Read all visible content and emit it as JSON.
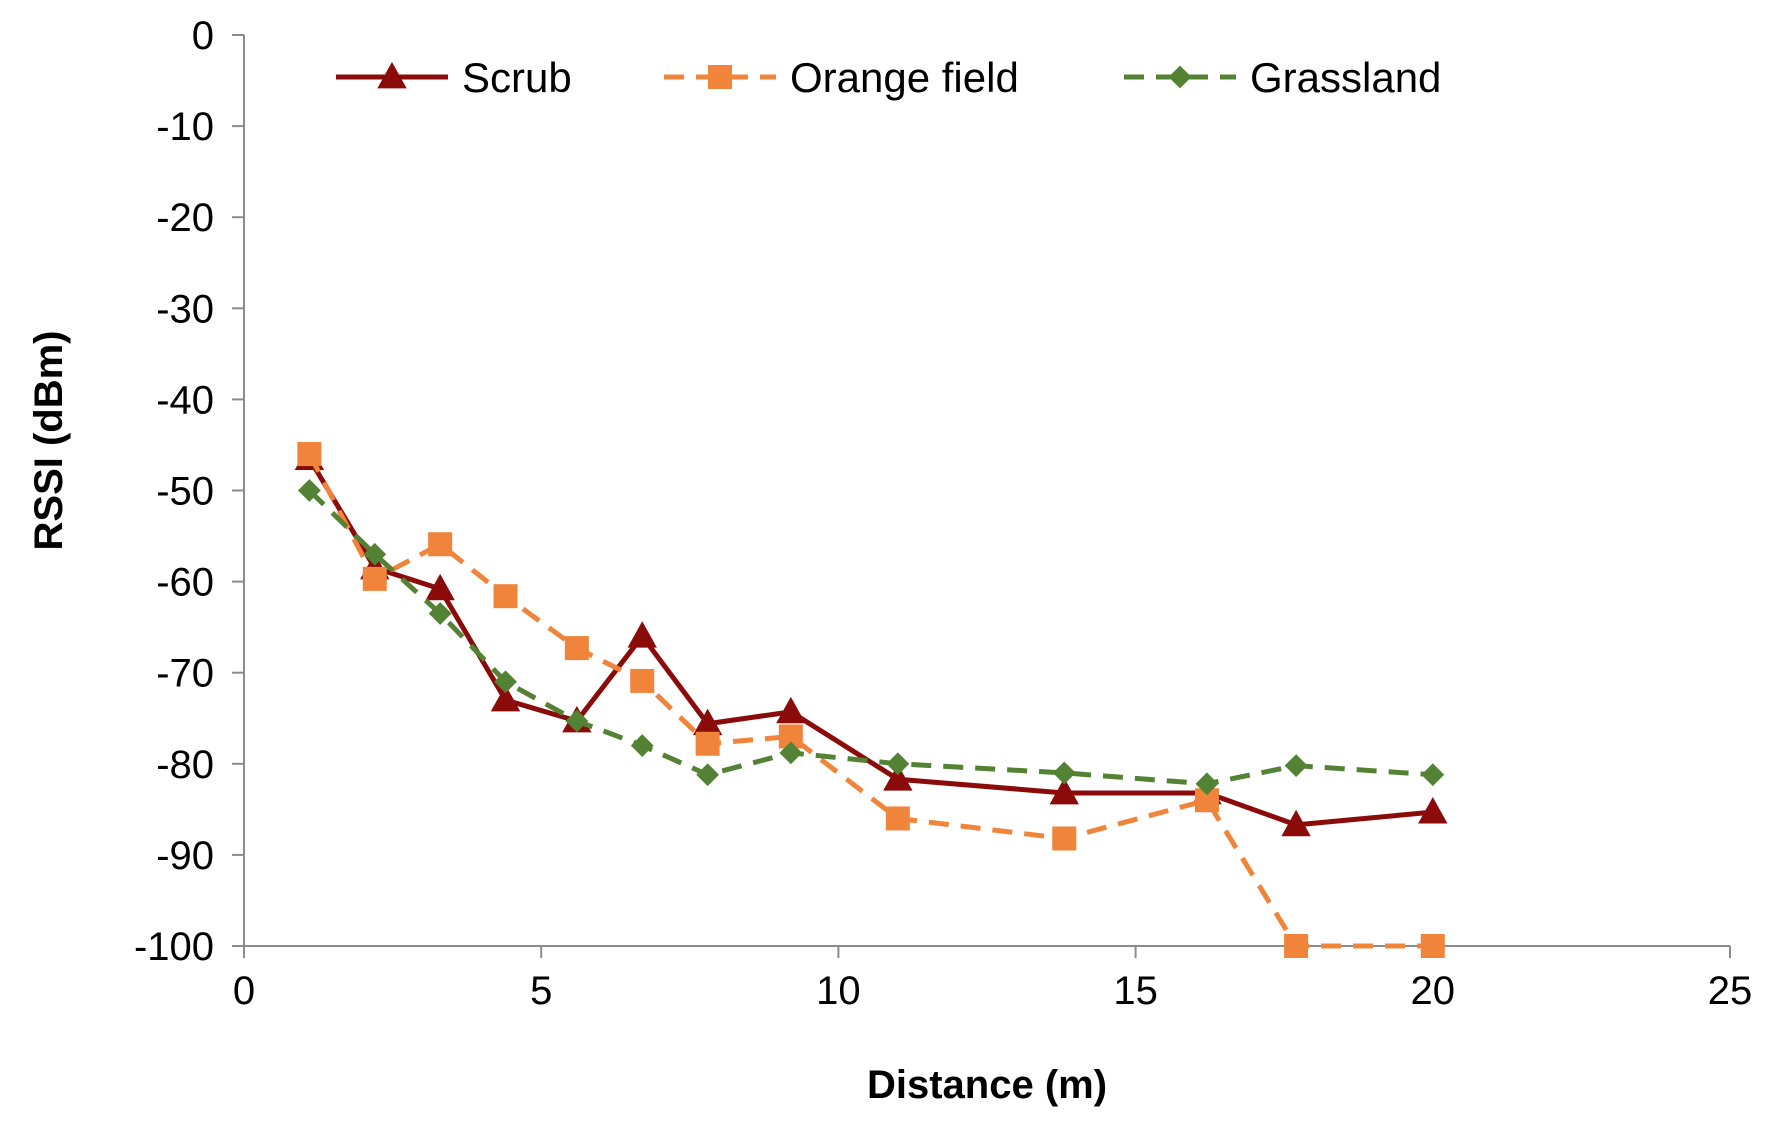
{
  "chart_data": {
    "type": "line",
    "title": "",
    "xlabel": "Distance (m)",
    "ylabel": "RSSI (dBm)",
    "xlim": [
      0,
      25
    ],
    "ylim": [
      -100,
      0
    ],
    "xticks": [
      "0",
      "5",
      "10",
      "15",
      "20",
      "25"
    ],
    "yticks": [
      "0",
      "-10",
      "-20",
      "-30",
      "-40",
      "-50",
      "-60",
      "-70",
      "-80",
      "-90",
      "-100"
    ],
    "grid": false,
    "legend_position": "top",
    "series": [
      {
        "name": "Scrub",
        "color": "#8B0A0A",
        "marker": "triangle",
        "line_style": "solid",
        "x": [
          1.1,
          2.2,
          3.3,
          4.4,
          5.6,
          6.7,
          7.8,
          9.2,
          11.0,
          13.8,
          16.2,
          17.7,
          20.0
        ],
        "y": [
          -46.5,
          -58.5,
          -60.8,
          -73.0,
          -75.3,
          -66.0,
          -75.6,
          -74.3,
          -81.7,
          -83.2,
          -83.2,
          -86.7,
          -85.3
        ]
      },
      {
        "name": "Orange field",
        "color": "#F0843A",
        "marker": "square",
        "line_style": "dashed",
        "x": [
          1.1,
          2.2,
          3.3,
          4.4,
          5.6,
          6.7,
          7.8,
          9.2,
          11.0,
          13.8,
          16.2,
          17.7,
          20.0
        ],
        "y": [
          -46.0,
          -59.7,
          -55.9,
          -61.6,
          -67.3,
          -70.9,
          -77.8,
          -77.0,
          -86.0,
          -88.2,
          -84.0,
          -100.0,
          -100.0
        ]
      },
      {
        "name": "Grassland",
        "color": "#538234",
        "marker": "diamond",
        "line_style": "dashed",
        "x": [
          1.1,
          2.2,
          3.3,
          4.4,
          5.6,
          6.7,
          7.8,
          9.2,
          11.0,
          13.8,
          16.2,
          17.7,
          20.0
        ],
        "y": [
          -50.0,
          -57.0,
          -63.5,
          -71.0,
          -75.3,
          -78.0,
          -81.2,
          -78.8,
          -80.0,
          -81.0,
          -82.2,
          -80.2,
          -81.2
        ]
      }
    ]
  }
}
